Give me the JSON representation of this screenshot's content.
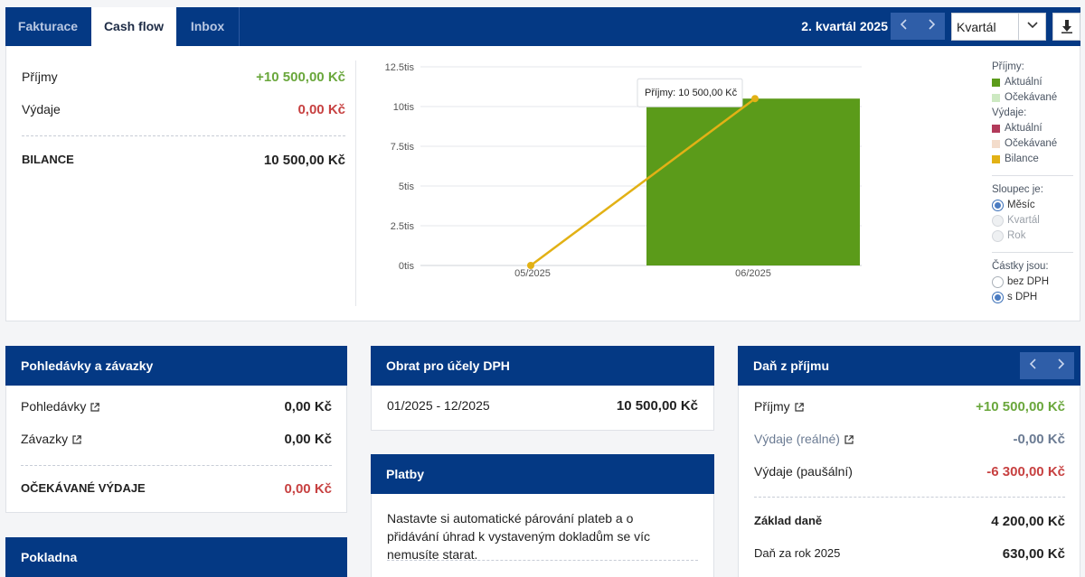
{
  "tabs": [
    {
      "label": "Fakturace",
      "active": false
    },
    {
      "label": "Cash flow",
      "active": true
    },
    {
      "label": "Inbox",
      "active": false
    }
  ],
  "toolbar": {
    "period": "2. kvartál 2025",
    "prev_icon": "chevron-left-icon",
    "next_icon": "chevron-right-icon",
    "select_value": "Kvartál",
    "download_icon": "download-icon"
  },
  "summary": {
    "income_label": "Příjmy",
    "income_value": "+10 500,00 Kč",
    "expense_label": "Výdaje",
    "expense_value": "0,00 Kč",
    "balance_label": "BILANCE",
    "balance_value": "10 500,00 Kč"
  },
  "chart_data": {
    "type": "bar",
    "categories": [
      "05/2025",
      "06/2025"
    ],
    "y_ticks": [
      "0tis",
      "2.5tis",
      "5tis",
      "7.5tis",
      "10tis",
      "12.5tis"
    ],
    "ylim": [
      0,
      12500
    ],
    "series": [
      {
        "name": "Aktuální",
        "kind": "bar",
        "color": "#5b9b1a",
        "values": [
          0,
          10500
        ]
      },
      {
        "name": "Bilance",
        "kind": "line",
        "color": "#e2b115",
        "values": [
          0,
          10500
        ]
      }
    ],
    "tooltip": "Příjmy: 10 500,00 Kč",
    "grid": true
  },
  "legend": {
    "income_head": "Příjmy:",
    "income_items": [
      {
        "label": "Aktuální",
        "color": "#5b9b1a"
      },
      {
        "label": "Očekávané",
        "color": "#cde9c2"
      }
    ],
    "expense_head": "Výdaje:",
    "expense_items": [
      {
        "label": "Aktuální",
        "color": "#b23a5a"
      },
      {
        "label": "Očekávané",
        "color": "#f3dccb"
      }
    ],
    "balance_item": {
      "label": "Bilance",
      "color": "#e2b115"
    },
    "column_head": "Sloupec je:",
    "column_options": [
      "Měsíc",
      "Kvartál",
      "Rok"
    ],
    "amount_head": "Částky jsou:",
    "amount_options": [
      "bez DPH",
      "s DPH"
    ]
  },
  "receivables": {
    "title": "Pohledávky a závazky",
    "receivables_label": "Pohledávky",
    "receivables_value": "0,00 Kč",
    "liabilities_label": "Závazky",
    "liabilities_value": "0,00 Kč",
    "expected_label": "OČEKÁVANÉ VÝDAJE",
    "expected_value": "0,00 Kč"
  },
  "cashbox": {
    "title": "Pokladna"
  },
  "vat": {
    "title": "Obrat pro účely DPH",
    "period": "01/2025 - 12/2025",
    "value": "10 500,00 Kč"
  },
  "payments": {
    "title": "Platby",
    "text": "Nastavte si automatické párování plateb a o přidávání úhrad k vystaveným dokladům se víc nemusíte starat."
  },
  "income_tax": {
    "title": "Daň z příjmu",
    "income_label": "Příjmy",
    "income_value": "+10 500,00 Kč",
    "real_exp_label": "Výdaje (reálné)",
    "real_exp_value": "-0,00 Kč",
    "flat_exp_label": "Výdaje (paušální)",
    "flat_exp_value": "-6 300,00 Kč",
    "base_label": "Základ daně",
    "base_value": "4 200,00 Kč",
    "tax_label": "Daň za rok 2025",
    "tax_value": "630,00 Kč"
  }
}
